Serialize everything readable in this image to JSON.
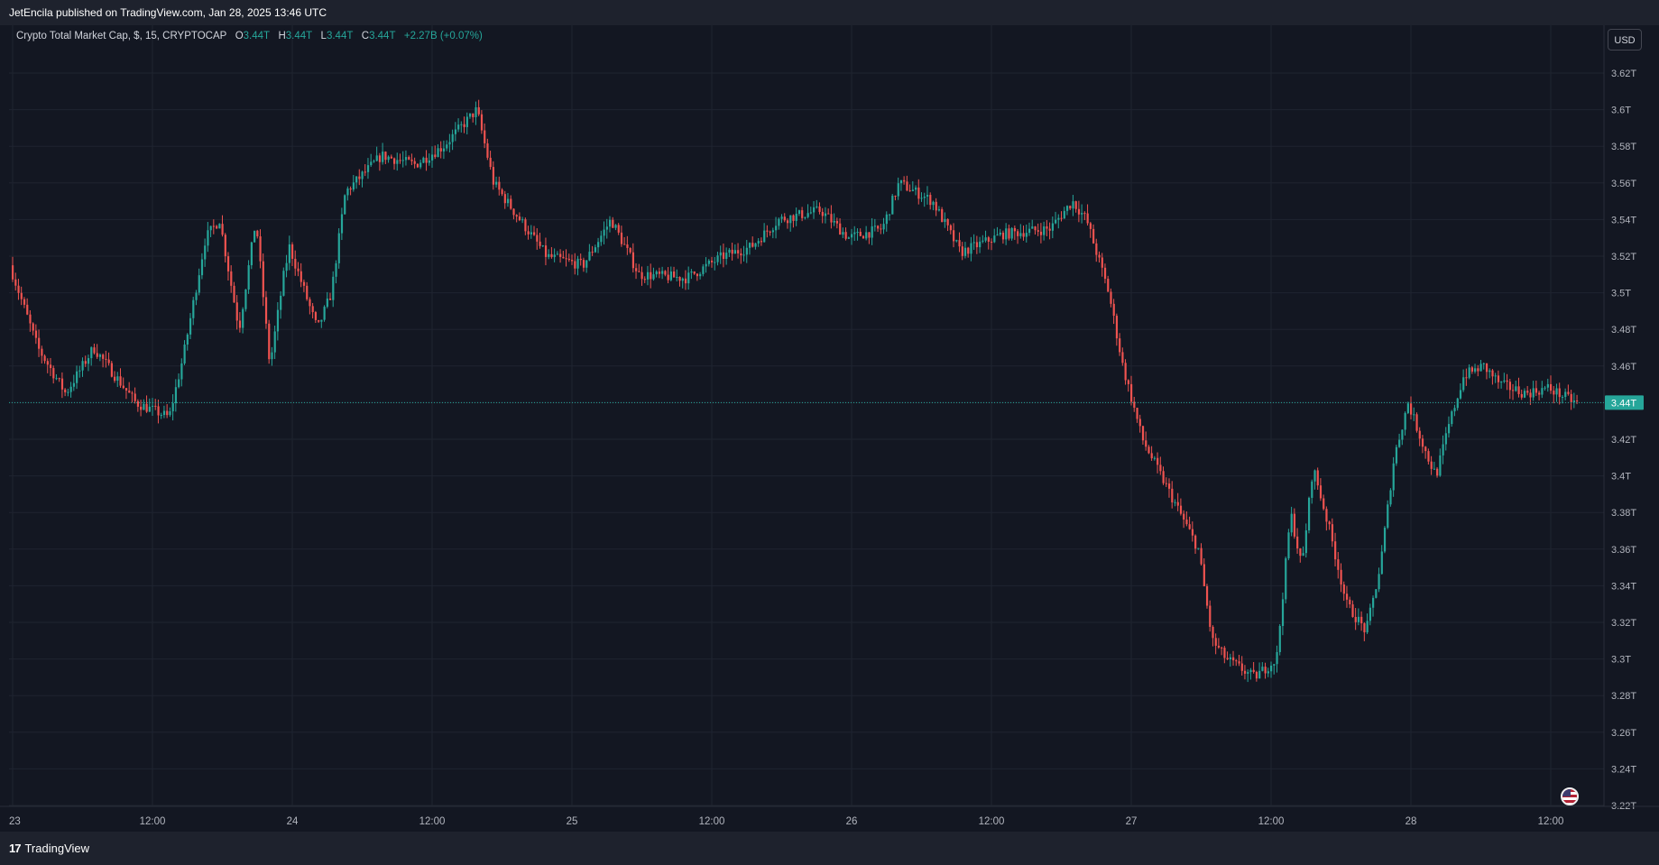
{
  "header": {
    "published": "JetEncila published on TradingView.com, Jan 28, 2025 13:46 UTC"
  },
  "legend": {
    "symbol": "Crypto Total Market Cap, $, 15, CRYPTOCAP",
    "o_label": "O",
    "o_value": "3.44T",
    "h_label": "H",
    "h_value": "3.44T",
    "l_label": "L",
    "l_value": "3.44T",
    "c_label": "C",
    "c_value": "3.44T",
    "change": "+2.27B (+0.07%)"
  },
  "currency": "USD",
  "footer": {
    "brand": "TradingView",
    "logo_mark": "17"
  },
  "colors": {
    "up": "#26a69a",
    "down": "#ef5350",
    "background": "#131722",
    "grid": "#1f2430",
    "text": "#d1d4dc"
  },
  "icons": {
    "flag": "us-flag-icon"
  },
  "chart_data": {
    "type": "candlestick",
    "title": "Crypto Total Market Cap, $, 15, CRYPTOCAP",
    "ylabel": "USD",
    "y_unit": "T",
    "ylim": [
      3.22,
      3.63
    ],
    "y_ticks": [
      3.62,
      3.6,
      3.58,
      3.56,
      3.54,
      3.52,
      3.5,
      3.48,
      3.46,
      3.44,
      3.42,
      3.4,
      3.38,
      3.36,
      3.34,
      3.32,
      3.3,
      3.28,
      3.26,
      3.24,
      3.22
    ],
    "y_tick_labels": [
      "3.62T",
      "3.6T",
      "3.58T",
      "3.56T",
      "3.54T",
      "3.52T",
      "3.5T",
      "3.48T",
      "3.46T",
      "3.44T",
      "3.42T",
      "3.4T",
      "3.38T",
      "3.36T",
      "3.34T",
      "3.32T",
      "3.3T",
      "3.28T",
      "3.26T",
      "3.24T",
      "3.22T"
    ],
    "x_ticks": [
      {
        "t": 0,
        "label": "23"
      },
      {
        "t": 0.5,
        "label": "12:00"
      },
      {
        "t": 1,
        "label": "24"
      },
      {
        "t": 1.5,
        "label": "12:00"
      },
      {
        "t": 2,
        "label": "25"
      },
      {
        "t": 2.5,
        "label": "12:00"
      },
      {
        "t": 3,
        "label": "26"
      },
      {
        "t": 3.5,
        "label": "12:00"
      },
      {
        "t": 4,
        "label": "27"
      },
      {
        "t": 4.5,
        "label": "12:00"
      },
      {
        "t": 5,
        "label": "28"
      },
      {
        "t": 5.5,
        "label": "12:00"
      }
    ],
    "x_range_days": [
      0,
      5.62
    ],
    "last_price": 3.44,
    "last_price_label": "3.44T",
    "grid": true,
    "price_path": [
      [
        0.0,
        3.515
      ],
      [
        0.1,
        3.47
      ],
      [
        0.2,
        3.445
      ],
      [
        0.3,
        3.47
      ],
      [
        0.45,
        3.44
      ],
      [
        0.57,
        3.432
      ],
      [
        0.62,
        3.465
      ],
      [
        0.7,
        3.53
      ],
      [
        0.75,
        3.54
      ],
      [
        0.82,
        3.48
      ],
      [
        0.88,
        3.54
      ],
      [
        0.93,
        3.46
      ],
      [
        0.98,
        3.51
      ],
      [
        1.0,
        3.525
      ],
      [
        1.1,
        3.48
      ],
      [
        1.15,
        3.5
      ],
      [
        1.2,
        3.555
      ],
      [
        1.33,
        3.575
      ],
      [
        1.45,
        3.57
      ],
      [
        1.55,
        3.58
      ],
      [
        1.67,
        3.6
      ],
      [
        1.73,
        3.56
      ],
      [
        1.8,
        3.545
      ],
      [
        1.92,
        3.52
      ],
      [
        2.05,
        3.515
      ],
      [
        2.15,
        3.54
      ],
      [
        2.25,
        3.51
      ],
      [
        2.42,
        3.508
      ],
      [
        2.55,
        3.52
      ],
      [
        2.65,
        3.525
      ],
      [
        2.75,
        3.54
      ],
      [
        2.9,
        3.545
      ],
      [
        3.0,
        3.53
      ],
      [
        3.12,
        3.535
      ],
      [
        3.18,
        3.56
      ],
      [
        3.3,
        3.55
      ],
      [
        3.4,
        3.522
      ],
      [
        3.55,
        3.532
      ],
      [
        3.72,
        3.535
      ],
      [
        3.8,
        3.55
      ],
      [
        3.85,
        3.54
      ],
      [
        3.93,
        3.5
      ],
      [
        3.98,
        3.46
      ],
      [
        4.05,
        3.42
      ],
      [
        4.15,
        3.39
      ],
      [
        4.25,
        3.36
      ],
      [
        4.3,
        3.31
      ],
      [
        4.35,
        3.3
      ],
      [
        4.45,
        3.29
      ],
      [
        4.53,
        3.3
      ],
      [
        4.58,
        3.38
      ],
      [
        4.62,
        3.35
      ],
      [
        4.66,
        3.405
      ],
      [
        4.72,
        3.37
      ],
      [
        4.78,
        3.33
      ],
      [
        4.85,
        3.315
      ],
      [
        4.9,
        3.35
      ],
      [
        4.95,
        3.41
      ],
      [
        5.0,
        3.44
      ],
      [
        5.07,
        3.41
      ],
      [
        5.1,
        3.4
      ],
      [
        5.15,
        3.43
      ],
      [
        5.2,
        3.455
      ],
      [
        5.27,
        3.46
      ],
      [
        5.33,
        3.45
      ],
      [
        5.42,
        3.445
      ],
      [
        5.5,
        3.448
      ],
      [
        5.6,
        3.44
      ]
    ]
  }
}
